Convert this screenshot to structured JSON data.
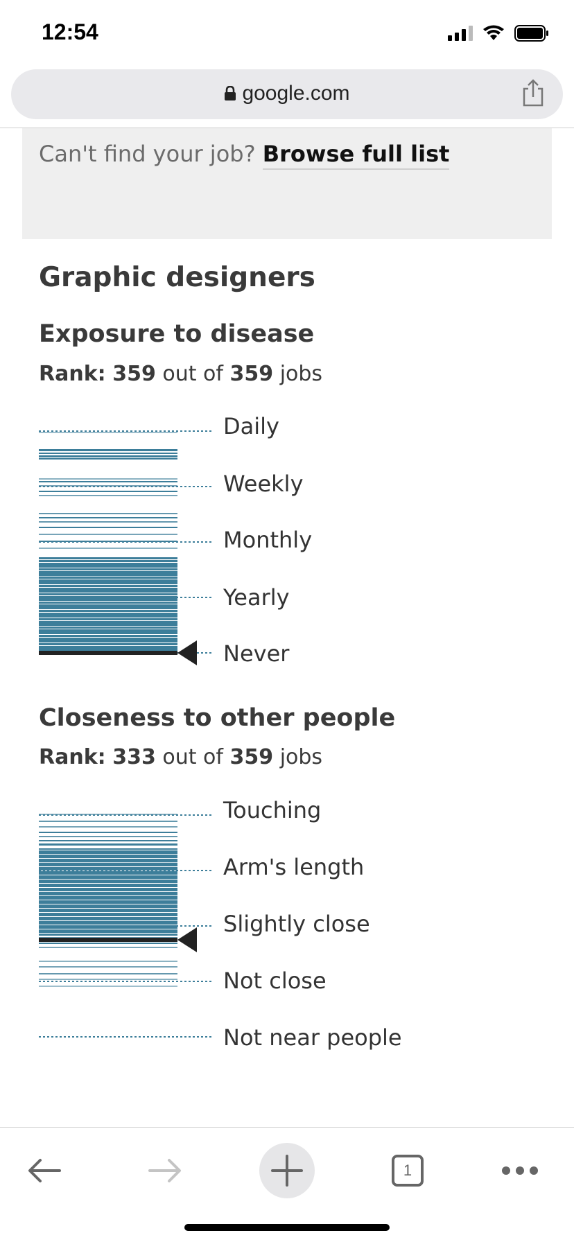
{
  "status_bar": {
    "time": "12:54"
  },
  "browser": {
    "url": "google.com"
  },
  "browse_box": {
    "prompt": "Can't find your job?",
    "link": "Browse full list"
  },
  "job": {
    "title": "Graphic designers"
  },
  "sections": [
    {
      "title": "Exposure to disease",
      "rank_label": "Rank:",
      "rank": "359",
      "out_of_text": "out of",
      "total": "359",
      "jobs_text": "jobs",
      "levels": [
        "Daily",
        "Weekly",
        "Monthly",
        "Yearly",
        "Never"
      ]
    },
    {
      "title": "Closeness to other people",
      "rank_label": "Rank:",
      "rank": "333",
      "out_of_text": "out of",
      "total": "359",
      "jobs_text": "jobs",
      "levels": [
        "Touching",
        "Arm's length",
        "Slightly close",
        "Not close",
        "Not near people"
      ]
    }
  ],
  "toolbar": {
    "tab_count": "1"
  },
  "colors": {
    "bar": "#3d7e9a",
    "marker": "#222222",
    "dotted": "#3d7e9a"
  },
  "icons": [
    "lock-icon",
    "share-icon",
    "back-arrow-icon",
    "forward-arrow-icon",
    "plus-icon",
    "tabs-icon",
    "more-icon"
  ]
}
